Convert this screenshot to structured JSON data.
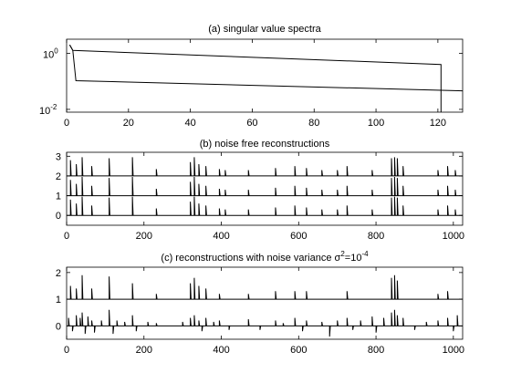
{
  "chart_data": [
    {
      "type": "line",
      "title": "(a) singular value spectra",
      "xlim": [
        0,
        128
      ],
      "ylim_log10": [
        -2.1,
        0.5
      ],
      "yscale": "log",
      "xticks": [
        "0",
        "20",
        "40",
        "60",
        "80",
        "100",
        "120"
      ],
      "xtick_values": [
        0,
        20,
        40,
        60,
        80,
        100,
        120
      ],
      "yticks": [
        {
          "base": "10",
          "exp": "0",
          "value": 0
        },
        {
          "base": "10",
          "exp": "-2",
          "value": -2
        }
      ],
      "series": [
        {
          "x": [
            1,
            2,
            121,
            121
          ],
          "log10_y": [
            0.3,
            0.1,
            -0.4,
            -2.2
          ]
        },
        {
          "x": [
            1,
            2,
            3,
            128
          ],
          "log10_y": [
            0.3,
            0.1,
            -0.98,
            -1.34
          ]
        }
      ]
    },
    {
      "type": "line",
      "title": "(b) noise free reconstructions",
      "xlim": [
        0,
        1024
      ],
      "ylim": [
        -0.5,
        3.2
      ],
      "xticks": [
        "0",
        "200",
        "400",
        "600",
        "800",
        "1000"
      ],
      "xtick_values": [
        0,
        200,
        400,
        600,
        800,
        1000
      ],
      "yticks": [
        "0",
        "1",
        "2",
        "3"
      ],
      "ytick_values": [
        0,
        1,
        2,
        3
      ],
      "series": [
        {
          "baseline": 2,
          "spikes": [
            [
              10,
              0.8
            ],
            [
              25,
              0.6
            ],
            [
              40,
              0.95
            ],
            [
              65,
              0.5
            ],
            [
              110,
              0.9
            ],
            [
              170,
              0.95
            ],
            [
              232,
              0.35
            ],
            [
              320,
              0.7
            ],
            [
              330,
              0.95
            ],
            [
              342,
              0.6
            ],
            [
              360,
              0.5
            ],
            [
              395,
              0.35
            ],
            [
              410,
              0.3
            ],
            [
              470,
              0.3
            ],
            [
              540,
              0.4
            ],
            [
              590,
              0.5
            ],
            [
              620,
              0.4
            ],
            [
              660,
              0.3
            ],
            [
              700,
              0.3
            ],
            [
              725,
              0.5
            ],
            [
              790,
              0.3
            ],
            [
              840,
              0.9
            ],
            [
              848,
              0.95
            ],
            [
              855,
              0.9
            ],
            [
              870,
              0.5
            ],
            [
              960,
              0.3
            ],
            [
              985,
              0.5
            ],
            [
              1005,
              0.3
            ]
          ]
        },
        {
          "baseline": 1,
          "spikes": [
            [
              10,
              0.8
            ],
            [
              25,
              0.6
            ],
            [
              40,
              0.95
            ],
            [
              65,
              0.5
            ],
            [
              110,
              0.9
            ],
            [
              170,
              0.95
            ],
            [
              232,
              0.35
            ],
            [
              320,
              0.7
            ],
            [
              330,
              0.95
            ],
            [
              342,
              0.6
            ],
            [
              360,
              0.5
            ],
            [
              395,
              0.35
            ],
            [
              410,
              0.3
            ],
            [
              470,
              0.3
            ],
            [
              540,
              0.4
            ],
            [
              590,
              0.5
            ],
            [
              620,
              0.4
            ],
            [
              660,
              0.3
            ],
            [
              700,
              0.3
            ],
            [
              725,
              0.5
            ],
            [
              790,
              0.3
            ],
            [
              840,
              0.9
            ],
            [
              848,
              0.95
            ],
            [
              855,
              0.9
            ],
            [
              870,
              0.5
            ],
            [
              960,
              0.3
            ],
            [
              985,
              0.5
            ],
            [
              1005,
              0.3
            ]
          ]
        },
        {
          "baseline": 0,
          "spikes": [
            [
              10,
              0.8
            ],
            [
              25,
              0.6
            ],
            [
              40,
              0.95
            ],
            [
              65,
              0.5
            ],
            [
              110,
              0.9
            ],
            [
              170,
              0.95
            ],
            [
              232,
              0.35
            ],
            [
              320,
              0.7
            ],
            [
              330,
              0.95
            ],
            [
              342,
              0.6
            ],
            [
              360,
              0.5
            ],
            [
              395,
              0.35
            ],
            [
              410,
              0.3
            ],
            [
              470,
              0.3
            ],
            [
              540,
              0.4
            ],
            [
              590,
              0.5
            ],
            [
              620,
              0.4
            ],
            [
              660,
              0.3
            ],
            [
              700,
              0.3
            ],
            [
              725,
              0.5
            ],
            [
              790,
              0.3
            ],
            [
              840,
              0.9
            ],
            [
              848,
              0.95
            ],
            [
              855,
              0.9
            ],
            [
              870,
              0.5
            ],
            [
              960,
              0.3
            ],
            [
              985,
              0.5
            ],
            [
              1005,
              0.3
            ]
          ]
        }
      ]
    },
    {
      "type": "line",
      "title_prefix": "(c) reconstructions with noise variance σ",
      "title_sup1": "2",
      "title_mid": "=10",
      "title_sup2": "-4",
      "xlim": [
        0,
        1024
      ],
      "ylim": [
        -0.5,
        2.2
      ],
      "xticks": [
        "0",
        "200",
        "400",
        "600",
        "800",
        "1000"
      ],
      "xtick_values": [
        0,
        200,
        400,
        600,
        800,
        1000
      ],
      "yticks": [
        "0",
        "1",
        "2"
      ],
      "ytick_values": [
        0,
        1,
        2
      ],
      "series": [
        {
          "baseline": 1,
          "spikes": [
            [
              10,
              0.5
            ],
            [
              25,
              0.4
            ],
            [
              40,
              0.9
            ],
            [
              65,
              0.4
            ],
            [
              110,
              0.85
            ],
            [
              170,
              0.6
            ],
            [
              232,
              0.2
            ],
            [
              320,
              0.6
            ],
            [
              330,
              0.8
            ],
            [
              342,
              0.5
            ],
            [
              360,
              0.4
            ],
            [
              395,
              0.2
            ],
            [
              470,
              0.2
            ],
            [
              540,
              0.3
            ],
            [
              590,
              0.3
            ],
            [
              620,
              0.3
            ],
            [
              725,
              0.3
            ],
            [
              840,
              0.8
            ],
            [
              848,
              0.9
            ],
            [
              855,
              0.7
            ],
            [
              960,
              0.2
            ],
            [
              985,
              0.3
            ]
          ]
        },
        {
          "baseline": 0,
          "noisy": true,
          "spikes": [
            [
              5,
              0.3
            ],
            [
              15,
              -0.2
            ],
            [
              25,
              0.4
            ],
            [
              35,
              0.3
            ],
            [
              40,
              0.5
            ],
            [
              48,
              -0.3
            ],
            [
              55,
              0.35
            ],
            [
              65,
              0.2
            ],
            [
              72,
              -0.25
            ],
            [
              90,
              0.2
            ],
            [
              110,
              0.6
            ],
            [
              120,
              -0.3
            ],
            [
              130,
              0.2
            ],
            [
              150,
              0.15
            ],
            [
              170,
              0.4
            ],
            [
              180,
              -0.2
            ],
            [
              210,
              0.15
            ],
            [
              232,
              0.1
            ],
            [
              300,
              0.15
            ],
            [
              320,
              0.3
            ],
            [
              330,
              0.4
            ],
            [
              342,
              0.2
            ],
            [
              350,
              -0.2
            ],
            [
              360,
              0.3
            ],
            [
              380,
              0.15
            ],
            [
              395,
              0.2
            ],
            [
              420,
              -0.15
            ],
            [
              470,
              0.25
            ],
            [
              500,
              -0.15
            ],
            [
              540,
              0.2
            ],
            [
              560,
              0.1
            ],
            [
              590,
              0.3
            ],
            [
              610,
              -0.2
            ],
            [
              620,
              0.2
            ],
            [
              660,
              0.15
            ],
            [
              680,
              -0.4
            ],
            [
              700,
              0.2
            ],
            [
              725,
              0.3
            ],
            [
              740,
              -0.15
            ],
            [
              760,
              0.2
            ],
            [
              790,
              0.35
            ],
            [
              800,
              -0.25
            ],
            [
              820,
              0.3
            ],
            [
              840,
              0.5
            ],
            [
              848,
              0.6
            ],
            [
              855,
              0.4
            ],
            [
              870,
              0.3
            ],
            [
              900,
              -0.15
            ],
            [
              930,
              0.15
            ],
            [
              960,
              0.2
            ],
            [
              985,
              0.3
            ],
            [
              1000,
              -0.2
            ],
            [
              1010,
              0.4
            ]
          ]
        }
      ]
    }
  ]
}
